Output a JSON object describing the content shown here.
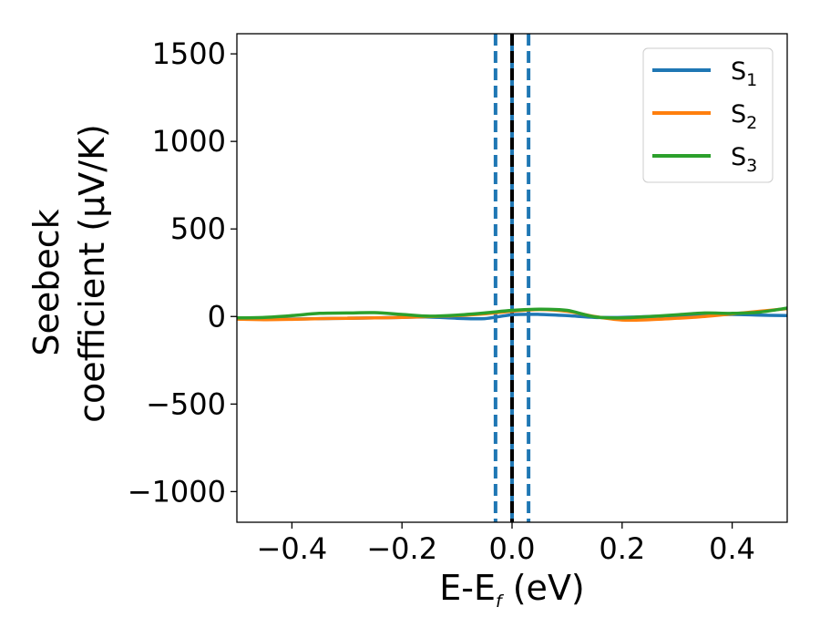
{
  "chart_data": {
    "type": "line",
    "title": "",
    "xlabel": {
      "main": "E-E",
      "sub": "f",
      "unit": " (eV)"
    },
    "ylabel": {
      "line1": "Seebeck",
      "line2": "coefficient  (μV/K)"
    },
    "xlim": [
      -0.5,
      0.5
    ],
    "ylim": [
      -1175,
      1615
    ],
    "xticks": [
      -0.4,
      -0.2,
      0.0,
      0.2,
      0.4
    ],
    "xtick_labels": [
      "−0.4",
      "−0.2",
      "0.0",
      "0.2",
      "0.4"
    ],
    "yticks": [
      -1000,
      -500,
      0,
      500,
      1000,
      1500
    ],
    "ytick_labels": [
      "−1000",
      "−500",
      "0",
      "500",
      "1000",
      "1500"
    ],
    "grid": false,
    "legend_position": "top-right",
    "vertical_lines": [
      {
        "x": -0.03,
        "color": "#1f77b4",
        "style": "dashed"
      },
      {
        "x": 0.0,
        "color": "#1f77b4",
        "style": "solid"
      },
      {
        "x": 0.0,
        "color": "#000000",
        "style": "dashed"
      },
      {
        "x": 0.03,
        "color": "#1f77b4",
        "style": "dashed"
      }
    ],
    "series": [
      {
        "name": "S",
        "sub": "1",
        "color": "#1f77b4",
        "x": [
          -0.5,
          -0.45,
          -0.4,
          -0.35,
          -0.3,
          -0.25,
          -0.2,
          -0.15,
          -0.1,
          -0.05,
          0.0,
          0.05,
          0.1,
          0.15,
          0.2,
          0.25,
          0.3,
          0.35,
          0.4,
          0.45,
          0.5
        ],
        "y": [
          -10,
          -12,
          -14,
          -12,
          -10,
          -8,
          -5,
          -3,
          -10,
          -12,
          10,
          12,
          5,
          -5,
          -5,
          0,
          5,
          8,
          12,
          8,
          5
        ]
      },
      {
        "name": "S",
        "sub": "2",
        "color": "#ff7f0e",
        "x": [
          -0.5,
          -0.45,
          -0.4,
          -0.35,
          -0.3,
          -0.25,
          -0.2,
          -0.15,
          -0.1,
          -0.05,
          0.0,
          0.05,
          0.1,
          0.15,
          0.2,
          0.25,
          0.3,
          0.35,
          0.4,
          0.45,
          0.5
        ],
        "y": [
          -15,
          -18,
          -16,
          -12,
          -10,
          -8,
          -5,
          0,
          5,
          15,
          30,
          40,
          30,
          0,
          -20,
          -18,
          -10,
          0,
          15,
          30,
          45
        ]
      },
      {
        "name": "S",
        "sub": "3",
        "color": "#2ca02c",
        "x": [
          -0.5,
          -0.45,
          -0.4,
          -0.35,
          -0.3,
          -0.25,
          -0.2,
          -0.15,
          -0.1,
          -0.05,
          0.0,
          0.05,
          0.1,
          0.15,
          0.2,
          0.25,
          0.3,
          0.35,
          0.4,
          0.45,
          0.5
        ],
        "y": [
          -8,
          -5,
          5,
          18,
          20,
          22,
          12,
          2,
          8,
          20,
          35,
          42,
          35,
          -2,
          -8,
          0,
          10,
          20,
          18,
          25,
          48
        ]
      }
    ]
  }
}
